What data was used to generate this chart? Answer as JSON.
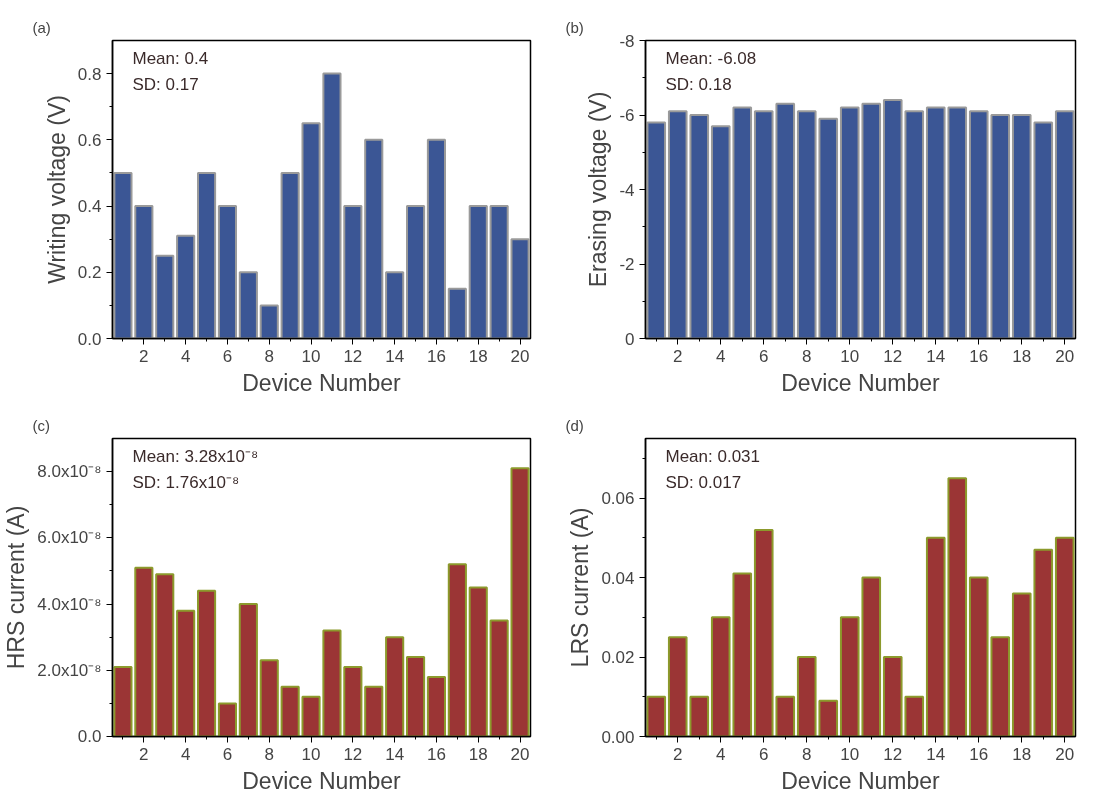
{
  "chart_data": [
    {
      "type": "bar",
      "title": "(a)",
      "xlabel": "Device Number",
      "ylabel": "Writing voltage (V)",
      "annotations": [
        "Mean: 0.4",
        "SD: 0.17"
      ],
      "x": [
        1,
        2,
        3,
        4,
        5,
        6,
        7,
        8,
        9,
        10,
        11,
        12,
        13,
        14,
        15,
        16,
        17,
        18,
        19,
        20
      ],
      "series": [
        {
          "color": "#3b5695",
          "values": [
            0.5,
            0.4,
            0.25,
            0.31,
            0.5,
            0.4,
            0.2,
            0.1,
            0.5,
            0.65,
            0.8,
            0.4,
            0.6,
            0.2,
            0.4,
            0.6,
            0.15,
            0.4,
            0.4,
            0.3
          ]
        }
      ],
      "xlim": [
        0.5,
        20.5
      ],
      "xticks": [
        {
          "value": 1,
          "label": null
        },
        2,
        {
          "value": 3,
          "label": null
        },
        4,
        {
          "value": 5,
          "label": null
        },
        6,
        {
          "value": 7,
          "label": null
        },
        8,
        {
          "value": 9,
          "label": null
        },
        10,
        {
          "value": 11,
          "label": null
        },
        12,
        {
          "value": 13,
          "label": null
        },
        14,
        {
          "value": 15,
          "label": null
        },
        16,
        {
          "value": 17,
          "label": null
        },
        18,
        {
          "value": 19,
          "label": null
        },
        20
      ],
      "ylim": [
        0,
        0.9
      ],
      "yticks": [
        {
          "value": 0,
          "label": "0.0"
        },
        {
          "value": 0.1,
          "label": null
        },
        0.2,
        {
          "value": 0.3,
          "label": null
        },
        0.4,
        {
          "value": 0.5,
          "label": null
        },
        0.6,
        {
          "value": 0.7,
          "label": null
        },
        0.8
      ],
      "grid": false
    },
    {
      "type": "bar",
      "title": "(b)",
      "xlabel": "Device Number",
      "ylabel": "Erasing voltage (V)",
      "annotations": [
        "Mean: -6.08",
        "SD: 0.18"
      ],
      "x": [
        1,
        2,
        3,
        4,
        5,
        6,
        7,
        8,
        9,
        10,
        11,
        12,
        13,
        14,
        15,
        16,
        17,
        18,
        19,
        20
      ],
      "series": [
        {
          "color": "#3b5695",
          "values": [
            -5.8,
            -6.1,
            -6.0,
            -5.7,
            -6.2,
            -6.1,
            -6.3,
            -6.1,
            -5.9,
            -6.2,
            -6.3,
            -6.4,
            -6.1,
            -6.2,
            -6.2,
            -6.1,
            -6.0,
            -6.0,
            -5.8,
            -6.1
          ]
        }
      ],
      "xlim": [
        0.5,
        20.5
      ],
      "xticks": [
        {
          "value": 1,
          "label": null
        },
        2,
        {
          "value": 3,
          "label": null
        },
        4,
        {
          "value": 5,
          "label": null
        },
        6,
        {
          "value": 7,
          "label": null
        },
        8,
        {
          "value": 9,
          "label": null
        },
        10,
        {
          "value": 11,
          "label": null
        },
        12,
        {
          "value": 13,
          "label": null
        },
        14,
        {
          "value": 15,
          "label": null
        },
        16,
        {
          "value": 17,
          "label": null
        },
        18,
        {
          "value": 19,
          "label": null
        },
        20
      ],
      "ylim": [
        0,
        -8
      ],
      "yticks": [
        0,
        {
          "value": -1,
          "label": null
        },
        -2,
        {
          "value": -3,
          "label": null
        },
        -4,
        {
          "value": -5,
          "label": null
        },
        -6,
        {
          "value": -7,
          "label": null
        },
        -8
      ],
      "grid": false
    },
    {
      "type": "bar",
      "title": "(c)",
      "xlabel": "Device Number",
      "ylabel": "HRS current (A)",
      "annotations": [
        "Mean: 3.28x10⁻⁸",
        "SD: 1.76x10⁻⁸"
      ],
      "x": [
        1,
        2,
        3,
        4,
        5,
        6,
        7,
        8,
        9,
        10,
        11,
        12,
        13,
        14,
        15,
        16,
        17,
        18,
        19,
        20
      ],
      "series": [
        {
          "color": "#9b3535",
          "values": [
            2.1e-08,
            5.1e-08,
            4.9e-08,
            3.8e-08,
            4.4e-08,
            1e-08,
            4e-08,
            2.3e-08,
            1.5e-08,
            1.2e-08,
            3.2e-08,
            2.1e-08,
            1.5e-08,
            3e-08,
            2.4e-08,
            1.8e-08,
            5.2e-08,
            4.5e-08,
            3.5e-08,
            8.1e-08
          ]
        }
      ],
      "xlim": [
        0.5,
        20.5
      ],
      "xticks": [
        {
          "value": 1,
          "label": null
        },
        2,
        {
          "value": 3,
          "label": null
        },
        4,
        {
          "value": 5,
          "label": null
        },
        6,
        {
          "value": 7,
          "label": null
        },
        8,
        {
          "value": 9,
          "label": null
        },
        10,
        {
          "value": 11,
          "label": null
        },
        12,
        {
          "value": 13,
          "label": null
        },
        14,
        {
          "value": 15,
          "label": null
        },
        16,
        {
          "value": 17,
          "label": null
        },
        18,
        {
          "value": 19,
          "label": null
        },
        20
      ],
      "ylim": [
        0,
        9e-08
      ],
      "yticks": [
        {
          "value": 0,
          "label": "0.0"
        },
        {
          "value": 1e-08,
          "label": null
        },
        {
          "value": 2e-08,
          "label": "2.0x10⁻⁸"
        },
        {
          "value": 3e-08,
          "label": null
        },
        {
          "value": 4e-08,
          "label": "4.0x10⁻⁸"
        },
        {
          "value": 5e-08,
          "label": null
        },
        {
          "value": 6e-08,
          "label": "6.0x10⁻⁸"
        },
        {
          "value": 7e-08,
          "label": null
        },
        {
          "value": 8e-08,
          "label": "8.0x10⁻⁸"
        }
      ],
      "grid": false
    },
    {
      "type": "bar",
      "title": "(d)",
      "xlabel": "Device Number",
      "ylabel": "LRS current (A)",
      "annotations": [
        "Mean: 0.031",
        "SD: 0.017"
      ],
      "x": [
        1,
        2,
        3,
        4,
        5,
        6,
        7,
        8,
        9,
        10,
        11,
        12,
        13,
        14,
        15,
        16,
        17,
        18,
        19,
        20
      ],
      "series": [
        {
          "color": "#9b3535",
          "values": [
            0.01,
            0.025,
            0.01,
            0.03,
            0.041,
            0.052,
            0.01,
            0.02,
            0.009,
            0.03,
            0.04,
            0.02,
            0.01,
            0.05,
            0.065,
            0.04,
            0.025,
            0.036,
            0.047,
            0.05
          ]
        }
      ],
      "xlim": [
        0.5,
        20.5
      ],
      "xticks": [
        {
          "value": 1,
          "label": null
        },
        2,
        {
          "value": 3,
          "label": null
        },
        4,
        {
          "value": 5,
          "label": null
        },
        6,
        {
          "value": 7,
          "label": null
        },
        8,
        {
          "value": 9,
          "label": null
        },
        10,
        {
          "value": 11,
          "label": null
        },
        12,
        {
          "value": 13,
          "label": null
        },
        14,
        {
          "value": 15,
          "label": null
        },
        16,
        {
          "value": 17,
          "label": null
        },
        18,
        {
          "value": 19,
          "label": null
        },
        20
      ],
      "ylim": [
        0,
        0.075
      ],
      "yticks": [
        {
          "value": 0,
          "label": "0.00"
        },
        {
          "value": 0.01,
          "label": null
        },
        {
          "value": 0.02,
          "label": "0.02"
        },
        {
          "value": 0.03,
          "label": null
        },
        {
          "value": 0.04,
          "label": "0.04"
        },
        {
          "value": 0.05,
          "label": null
        },
        {
          "value": 0.06,
          "label": "0.06"
        },
        {
          "value": 0.07,
          "label": null
        }
      ],
      "grid": false
    }
  ]
}
